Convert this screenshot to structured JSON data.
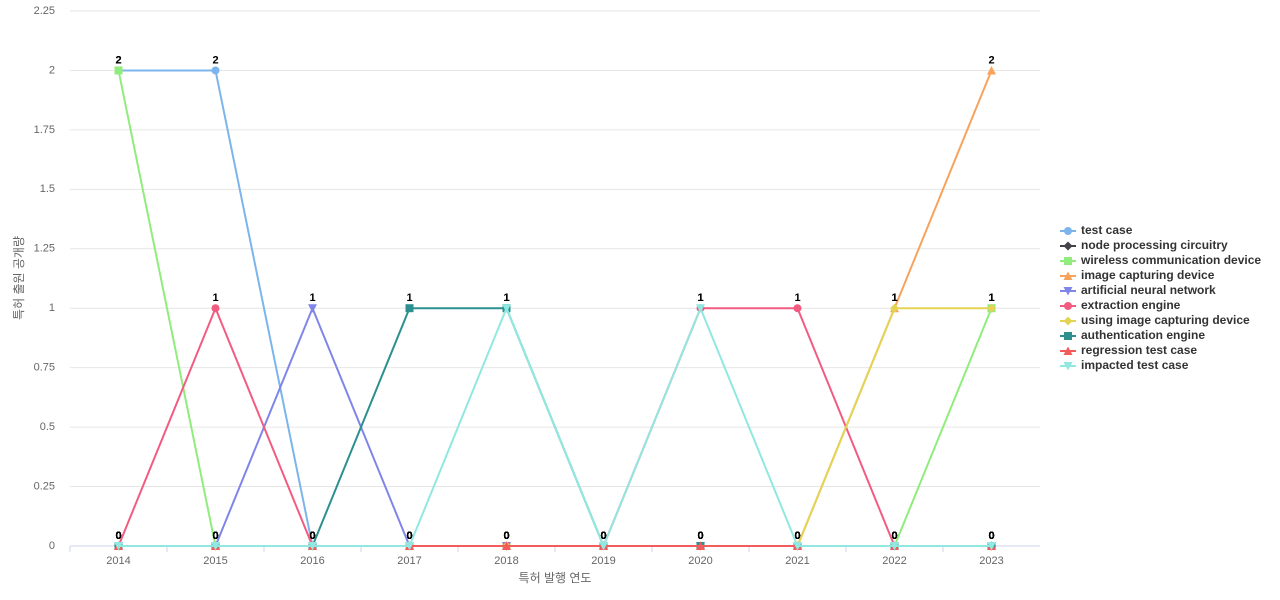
{
  "chart_data": {
    "type": "line",
    "x_label": "특허 발행 연도",
    "y_label": "특허 출원 공개량",
    "categories": [
      "2014",
      "2015",
      "2016",
      "2017",
      "2018",
      "2019",
      "2020",
      "2021",
      "2022",
      "2023"
    ],
    "ylim": [
      0,
      2.25
    ],
    "yticks": [
      0,
      0.25,
      0.5,
      0.75,
      1,
      1.25,
      1.5,
      1.75,
      2,
      2.25
    ],
    "grid": true,
    "legend": "right",
    "series": [
      {
        "name": "test case",
        "color": "#7cb5ec",
        "symbol": "circle",
        "values": [
          2,
          2,
          0,
          0,
          0,
          0,
          0,
          0,
          0,
          0
        ]
      },
      {
        "name": "node processing circuitry",
        "color": "#434348",
        "symbol": "diamond",
        "values": [
          0,
          0,
          0,
          0,
          0,
          0,
          0,
          0,
          0,
          0
        ]
      },
      {
        "name": "wireless communication device",
        "color": "#90ed7d",
        "symbol": "square",
        "values": [
          2,
          0,
          0,
          0,
          0,
          0,
          0,
          0,
          0,
          1
        ]
      },
      {
        "name": "image capturing device",
        "color": "#f7a35c",
        "symbol": "triangle",
        "values": [
          0,
          0,
          0,
          0,
          0,
          0,
          0,
          0,
          1,
          2
        ]
      },
      {
        "name": "artificial neural network",
        "color": "#8085e9",
        "symbol": "triangle-down",
        "values": [
          0,
          0,
          1,
          0,
          0,
          0,
          0,
          0,
          0,
          0
        ]
      },
      {
        "name": "extraction engine",
        "color": "#f15c80",
        "symbol": "circle",
        "values": [
          0,
          1,
          0,
          0,
          0,
          0,
          1,
          1,
          0,
          0
        ]
      },
      {
        "name": "using image capturing device",
        "color": "#e4d354",
        "symbol": "diamond",
        "values": [
          0,
          0,
          0,
          0,
          0,
          0,
          0,
          0,
          1,
          1
        ]
      },
      {
        "name": "authentication engine",
        "color": "#2b908f",
        "symbol": "square",
        "values": [
          0,
          0,
          0,
          1,
          1,
          0,
          0,
          0,
          0,
          0
        ]
      },
      {
        "name": "regression test case",
        "color": "#f45b5b",
        "symbol": "triangle",
        "values": [
          0,
          0,
          0,
          0,
          0,
          0,
          0,
          0,
          0,
          0
        ]
      },
      {
        "name": "impacted test case",
        "color": "#91e8e1",
        "symbol": "triangle-down",
        "values": [
          0,
          0,
          0,
          0,
          1,
          0,
          1,
          0,
          0,
          0
        ]
      }
    ]
  }
}
